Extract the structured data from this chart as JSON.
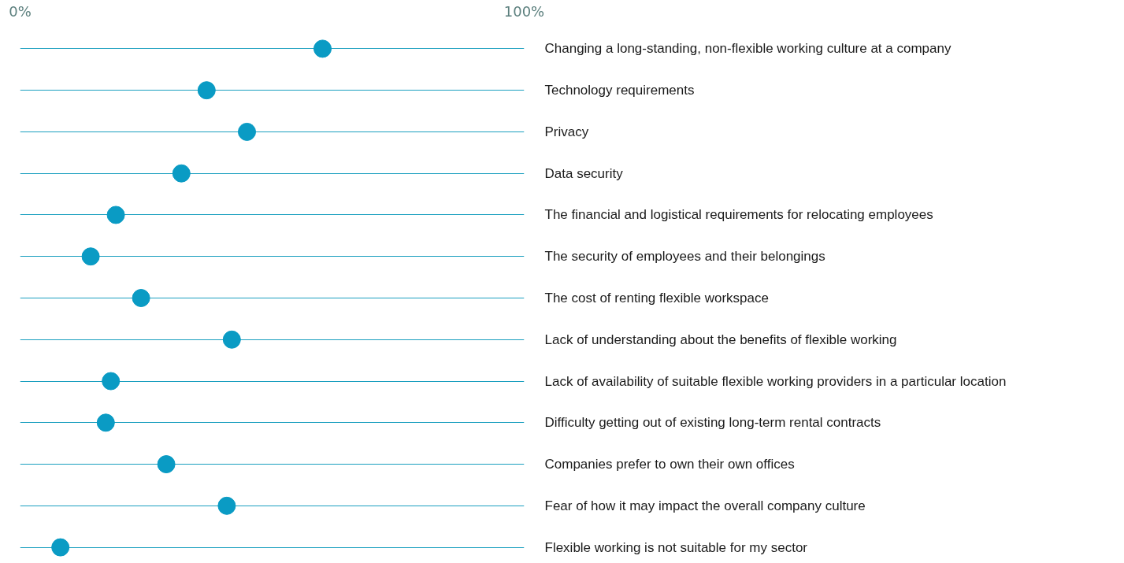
{
  "chart_data": {
    "type": "scatter",
    "orientation": "horizontal",
    "categories": [
      "Changing a long-standing, non-flexible working culture at a company",
      "Technology requirements",
      "Privacy",
      "Data security",
      "The financial and logistical requirements for relocating employees",
      "The security of employees and their belongings",
      "The cost of renting flexible workspace",
      "Lack of understanding about the benefits of flexible working",
      "Lack of availability of suitable flexible working providers in a particular location",
      "Difficulty getting out of existing long-term rental contracts",
      "Companies prefer to own their own offices",
      "Fear of how it may impact the overall company culture",
      "Flexible working is not suitable for my sector"
    ],
    "series": [
      {
        "color": "#0a9bc4",
        "values": [
          60,
          37,
          45,
          32,
          19,
          14,
          24,
          42,
          18,
          17,
          29,
          41,
          8
        ]
      }
    ],
    "xlim": [
      0,
      100
    ],
    "xticks": [
      {
        "value": 0,
        "label": "0%"
      },
      {
        "value": 100,
        "label": "100%"
      }
    ],
    "grid": "y",
    "marker": "circle"
  }
}
